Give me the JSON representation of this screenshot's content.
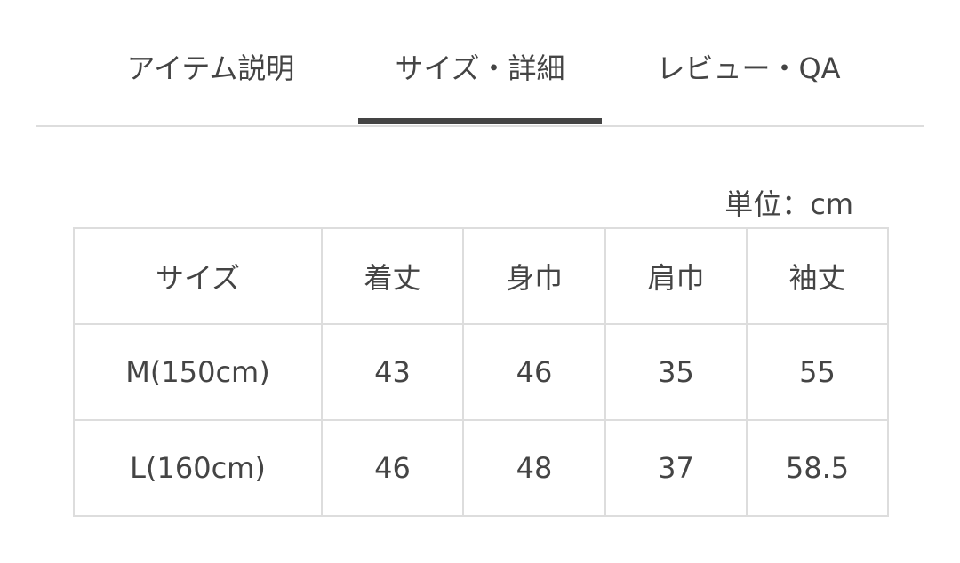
{
  "tabs": [
    {
      "label": "アイテム説明",
      "active": false
    },
    {
      "label": "サイズ・詳細",
      "active": true
    },
    {
      "label": "レビュー・QA",
      "active": false
    }
  ],
  "unit_label": "単位：cm",
  "table": {
    "headers": [
      "サイズ",
      "着丈",
      "身巾",
      "肩巾",
      "袖丈"
    ],
    "rows": [
      [
        "M(150cm)",
        "43",
        "46",
        "35",
        "55"
      ],
      [
        "L(160cm)",
        "46",
        "48",
        "37",
        "58.5"
      ]
    ]
  },
  "colors": {
    "text": "#444444",
    "border": "#dddddd",
    "active_indicator": "#444444"
  }
}
